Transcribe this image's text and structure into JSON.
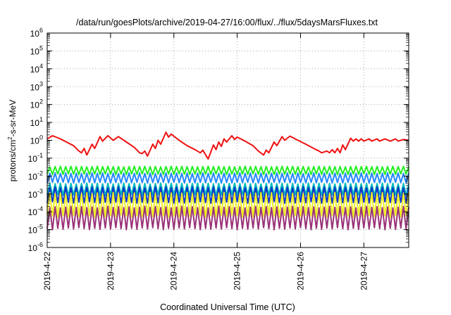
{
  "chart_data": {
    "type": "line",
    "title": "/data/run/goesPlots/archive/2019-04-27/16:00/flux/../flux/5daysMarsFluxes.txt",
    "xlabel": "Coordinated Universal Time (UTC)",
    "ylabel": {
      "prefix": "protons/cm",
      "superscript": "2",
      "suffix": "-s-sr-MeV"
    },
    "y_scale": "log",
    "ylim": [
      1e-06,
      1000000.0
    ],
    "y_ticks": [
      {
        "value": 1e-06,
        "base": "10",
        "exp": "-6"
      },
      {
        "value": 1e-05,
        "base": "10",
        "exp": "-5"
      },
      {
        "value": 0.0001,
        "base": "10",
        "exp": "-4"
      },
      {
        "value": 0.001,
        "base": "10",
        "exp": "-3"
      },
      {
        "value": 0.01,
        "base": "10",
        "exp": "-2"
      },
      {
        "value": 0.1,
        "base": "10",
        "exp": "-1"
      },
      {
        "value": 1,
        "base": "10",
        "exp": "0"
      },
      {
        "value": 10,
        "base": "10",
        "exp": "1"
      },
      {
        "value": 100,
        "base": "10",
        "exp": "2"
      },
      {
        "value": 1000,
        "base": "10",
        "exp": "3"
      },
      {
        "value": 10000,
        "base": "10",
        "exp": "4"
      },
      {
        "value": 100000,
        "base": "10",
        "exp": "5"
      },
      {
        "value": 1000000,
        "base": "10",
        "exp": "6"
      }
    ],
    "xlim": [
      "2019-04-22",
      "2019-04-27T17:00"
    ],
    "x_ticks": [
      "2019-4-22",
      "2019-4-23",
      "2019-4-24",
      "2019-4-25",
      "2019-4-26",
      "2019-4-27"
    ],
    "grid": true,
    "legend": "none",
    "series": [
      {
        "color": "#ee1111",
        "shape": "sawtooth",
        "points": [
          [
            "2019-04-22T00:00",
            1.2
          ],
          [
            "2019-04-22T02:00",
            1.8
          ],
          [
            "2019-04-22T05:00",
            1.2
          ],
          [
            "2019-04-22T08:00",
            0.7
          ],
          [
            "2019-04-22T10:00",
            0.5
          ],
          [
            "2019-04-22T12:00",
            0.25
          ],
          [
            "2019-04-22T13:00",
            0.2
          ],
          [
            "2019-04-22T14:00",
            0.35
          ],
          [
            "2019-04-22T15:00",
            0.15
          ],
          [
            "2019-04-22T17:00",
            0.6
          ],
          [
            "2019-04-22T18:00",
            0.35
          ],
          [
            "2019-04-22T20:00",
            1.6
          ],
          [
            "2019-04-22T21:00",
            0.9
          ],
          [
            "2019-04-22T23:00",
            1.8
          ],
          [
            "2019-04-23T01:00",
            1.0
          ],
          [
            "2019-04-23T03:00",
            1.6
          ],
          [
            "2019-04-23T06:00",
            0.8
          ],
          [
            "2019-04-23T09:00",
            0.4
          ],
          [
            "2019-04-23T11:00",
            0.2
          ],
          [
            "2019-04-23T12:00",
            0.18
          ],
          [
            "2019-04-23T13:00",
            0.25
          ],
          [
            "2019-04-23T14:00",
            0.13
          ],
          [
            "2019-04-23T16:00",
            0.6
          ],
          [
            "2019-04-23T17:00",
            0.35
          ],
          [
            "2019-04-23T18:00",
            1.0
          ],
          [
            "2019-04-23T19:00",
            0.6
          ],
          [
            "2019-04-23T21:00",
            2.8
          ],
          [
            "2019-04-23T22:00",
            1.5
          ],
          [
            "2019-04-23T23:00",
            2.2
          ],
          [
            "2019-04-24T02:00",
            1.0
          ],
          [
            "2019-04-24T05:00",
            0.5
          ],
          [
            "2019-04-24T08:00",
            0.3
          ],
          [
            "2019-04-24T10:00",
            0.2
          ],
          [
            "2019-04-24T11:00",
            0.28
          ],
          [
            "2019-04-24T13:00",
            0.09
          ],
          [
            "2019-04-24T15:00",
            0.55
          ],
          [
            "2019-04-24T16:00",
            0.3
          ],
          [
            "2019-04-24T17:00",
            0.8
          ],
          [
            "2019-04-24T18:00",
            0.45
          ],
          [
            "2019-04-24T19:00",
            1.2
          ],
          [
            "2019-04-24T20:00",
            0.8
          ],
          [
            "2019-04-24T22:00",
            1.8
          ],
          [
            "2019-04-24T23:00",
            1.1
          ],
          [
            "2019-04-25T00:00",
            1.5
          ],
          [
            "2019-04-25T03:00",
            0.9
          ],
          [
            "2019-04-25T06:00",
            0.5
          ],
          [
            "2019-04-25T08:00",
            0.25
          ],
          [
            "2019-04-25T10:00",
            0.15
          ],
          [
            "2019-04-25T11:00",
            0.28
          ],
          [
            "2019-04-25T12:00",
            0.2
          ],
          [
            "2019-04-25T14:00",
            0.8
          ],
          [
            "2019-04-25T15:00",
            0.5
          ],
          [
            "2019-04-25T17:00",
            1.6
          ],
          [
            "2019-04-25T18:00",
            1.0
          ],
          [
            "2019-04-25T20:00",
            1.7
          ],
          [
            "2019-04-25T23:00",
            1.0
          ],
          [
            "2019-04-26T02:00",
            0.6
          ],
          [
            "2019-04-26T05:00",
            0.35
          ],
          [
            "2019-04-26T07:00",
            0.25
          ],
          [
            "2019-04-26T08:00",
            0.2
          ],
          [
            "2019-04-26T10:00",
            0.25
          ],
          [
            "2019-04-26T11:00",
            0.2
          ],
          [
            "2019-04-26T12:00",
            0.3
          ],
          [
            "2019-04-26T13:00",
            0.2
          ],
          [
            "2019-04-26T14:00",
            0.35
          ],
          [
            "2019-04-26T15:00",
            0.2
          ],
          [
            "2019-04-26T16:00",
            0.55
          ],
          [
            "2019-04-26T17:00",
            0.3
          ],
          [
            "2019-04-26T19:00",
            1.3
          ],
          [
            "2019-04-26T20:00",
            0.9
          ],
          [
            "2019-04-26T21:00",
            1.2
          ],
          [
            "2019-04-26T22:00",
            0.9
          ],
          [
            "2019-04-26T23:00",
            1.2
          ],
          [
            "2019-04-27T00:00",
            0.9
          ],
          [
            "2019-04-27T02:00",
            1.2
          ],
          [
            "2019-04-27T03:00",
            0.9
          ],
          [
            "2019-04-27T05:00",
            1.2
          ],
          [
            "2019-04-27T06:00",
            0.9
          ],
          [
            "2019-04-27T08:00",
            1.2
          ],
          [
            "2019-04-27T10:00",
            0.9
          ],
          [
            "2019-04-27T12:00",
            1.2
          ],
          [
            "2019-04-27T13:00",
            0.9
          ],
          [
            "2019-04-27T15:00",
            1.1
          ],
          [
            "2019-04-27T17:00",
            1.0
          ]
        ]
      },
      {
        "color": "#22ee22",
        "shape": "oscillating",
        "low": 0.012,
        "high": 0.035
      },
      {
        "color": "#2288ff",
        "shape": "oscillating",
        "low": 0.004,
        "high": 0.015
      },
      {
        "color": "#00bbbb",
        "shape": "oscillating",
        "low": 0.0008,
        "high": 0.004
      },
      {
        "color": "#1133cc",
        "shape": "oscillating",
        "low": 0.0003,
        "high": 0.0025
      },
      {
        "color": "#eeee22",
        "shape": "oscillating",
        "low": 5e-05,
        "high": 0.0012
      },
      {
        "color": "#993377",
        "shape": "oscillating",
        "low": 1e-05,
        "high": 0.0002
      }
    ]
  }
}
